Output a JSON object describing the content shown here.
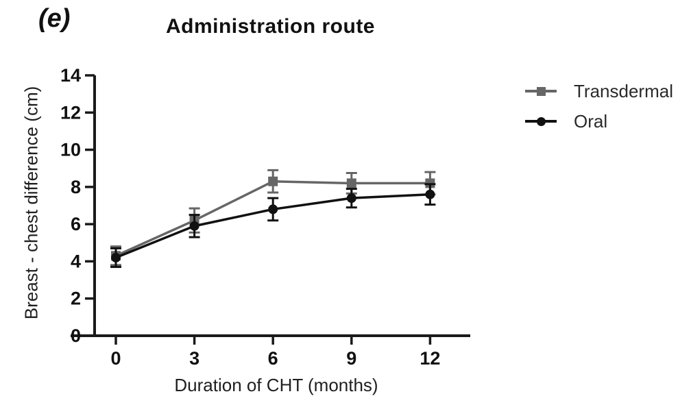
{
  "figure": {
    "panel_label": "(e)",
    "background": "#ffffff"
  },
  "chart_data": {
    "type": "line",
    "title": "Administration route",
    "xlabel": "Duration of CHT (months)",
    "ylabel": "Breast - chest difference (cm)",
    "x": [
      0,
      3,
      6,
      9,
      12
    ],
    "xticks": [
      0,
      3,
      6,
      9,
      12
    ],
    "yticks": [
      0,
      2,
      4,
      6,
      8,
      10,
      12,
      14
    ],
    "xlim": [
      -1.7,
      13.5
    ],
    "ylim": [
      0,
      14
    ],
    "grid": false,
    "legend_position": "right",
    "axis_color": "#1a1a1a",
    "series": [
      {
        "name": "Transdermal",
        "marker": "square",
        "color": "#666666",
        "values": [
          4.3,
          6.2,
          8.3,
          8.2,
          8.2
        ],
        "errors": [
          0.5,
          0.65,
          0.6,
          0.55,
          0.6
        ]
      },
      {
        "name": "Oral",
        "marker": "circle",
        "color": "#111111",
        "values": [
          4.2,
          5.9,
          6.8,
          7.4,
          7.6
        ],
        "errors": [
          0.5,
          0.6,
          0.6,
          0.5,
          0.55
        ]
      }
    ]
  }
}
